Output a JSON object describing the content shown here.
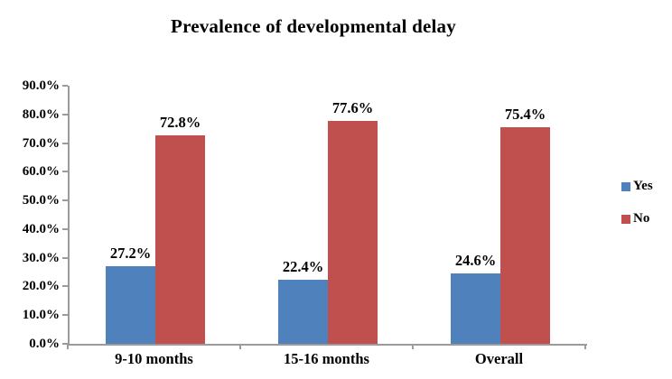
{
  "chart_data": {
    "type": "bar",
    "title": "Prevalence of developmental delay",
    "categories": [
      "9-10 months",
      "15-16 months",
      "Overall"
    ],
    "series": [
      {
        "name": "Yes",
        "color": "#4F81BD",
        "values": [
          27.2,
          22.4,
          24.6
        ],
        "labels": [
          "27.2%",
          "22.4%",
          "24.6%"
        ]
      },
      {
        "name": "No",
        "color": "#C0504D",
        "values": [
          72.8,
          77.6,
          75.4
        ],
        "labels": [
          "72.8%",
          "77.6%",
          "75.4%"
        ]
      }
    ],
    "xlabel": "",
    "ylabel": "",
    "ylim": [
      0,
      90
    ],
    "yticks": [
      "0.0%",
      "10.0%",
      "20.0%",
      "30.0%",
      "40.0%",
      "50.0%",
      "60.0%",
      "70.0%",
      "80.0%",
      "90.0%"
    ],
    "grid": false,
    "legend_position": "right",
    "axis_color": "#9b9b9b",
    "text_color": "#000000"
  }
}
